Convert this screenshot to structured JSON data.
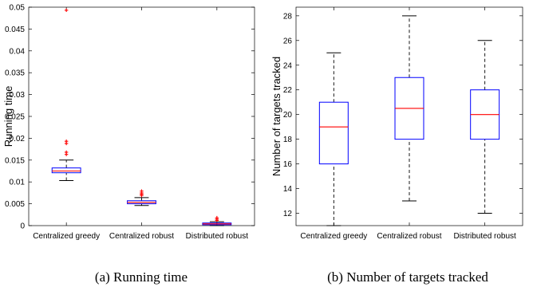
{
  "colors": {
    "box": "#0000ff",
    "median": "#ff0000",
    "whisker": "#000000",
    "outlier": "#ff0000"
  },
  "captions": [
    "(a) Running time",
    "(b) Number of targets tracked"
  ],
  "chart_data": [
    {
      "type": "box",
      "ylabel": "Running time",
      "categories": [
        "Centralized greedy",
        "Centralized robust",
        "Distributed robust"
      ],
      "ylim": [
        0,
        0.05
      ],
      "yticks": [
        0,
        0.005,
        0.01,
        0.015,
        0.02,
        0.025,
        0.03,
        0.035,
        0.04,
        0.045,
        0.05
      ],
      "ytick_labels": [
        "0",
        "0.005",
        "0.01",
        "0.015",
        "0.02",
        "0.025",
        "0.03",
        "0.035",
        "0.04",
        "0.045",
        "0.05"
      ],
      "boxes": [
        {
          "whisker_low": 0.0103,
          "q1": 0.0121,
          "median": 0.0125,
          "q3": 0.0132,
          "whisker_high": 0.015,
          "outliers": [
            0.0163,
            0.0168,
            0.0188,
            0.0193,
            0.0493
          ]
        },
        {
          "whisker_low": 0.0046,
          "q1": 0.005,
          "median": 0.0053,
          "q3": 0.0057,
          "whisker_high": 0.0064,
          "outliers": [
            0.0069,
            0.0072,
            0.0075,
            0.0079
          ]
        },
        {
          "whisker_low": 0.0,
          "q1": 0.0002,
          "median": 0.0004,
          "q3": 0.0006,
          "whisker_high": 0.0009,
          "outliers": [
            0.0012,
            0.0015,
            0.0018
          ]
        }
      ]
    },
    {
      "type": "box",
      "ylabel": "Number of targets tracked",
      "categories": [
        "Centralized greedy",
        "Centralized robust",
        "Distributed robust"
      ],
      "ylim": [
        11,
        28.7
      ],
      "yticks": [
        12,
        14,
        16,
        18,
        20,
        22,
        24,
        26,
        28
      ],
      "ytick_labels": [
        "12",
        "14",
        "16",
        "18",
        "20",
        "22",
        "24",
        "26",
        "28"
      ],
      "boxes": [
        {
          "whisker_low": 11,
          "q1": 16,
          "median": 19,
          "q3": 21,
          "whisker_high": 25,
          "outliers": []
        },
        {
          "whisker_low": 13,
          "q1": 18,
          "median": 20.5,
          "q3": 23,
          "whisker_high": 28,
          "outliers": []
        },
        {
          "whisker_low": 12,
          "q1": 18,
          "median": 20,
          "q3": 22,
          "whisker_high": 26,
          "outliers": []
        }
      ]
    }
  ]
}
